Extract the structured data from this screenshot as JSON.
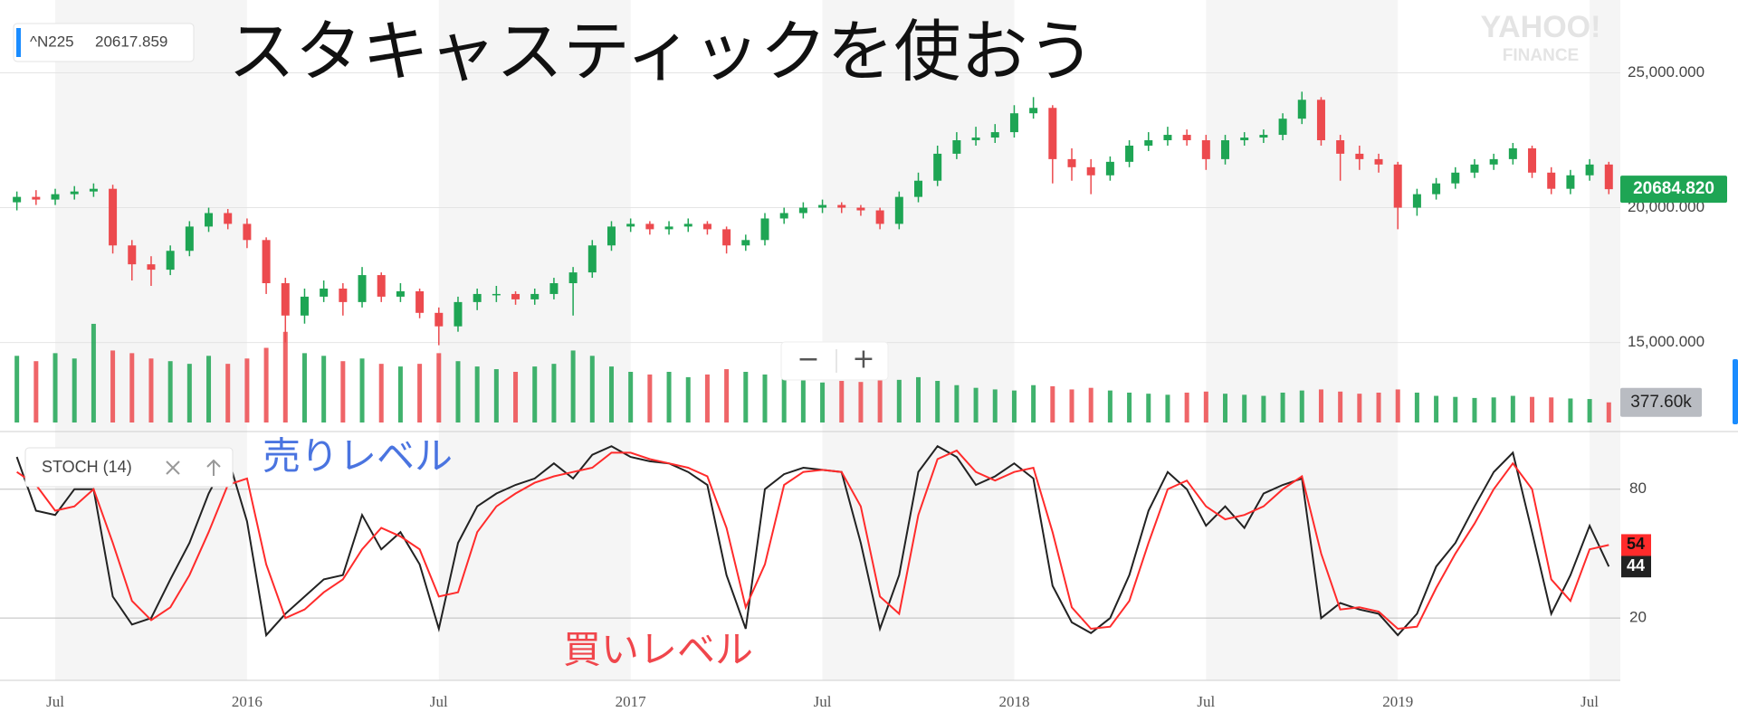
{
  "header": {
    "symbol": "^N225",
    "quote": "20617.859"
  },
  "headline": "スタキャスティックを使おう",
  "logo": {
    "line1": "YAHOO!",
    "line2": "FINANCE"
  },
  "zoom": {
    "out": "−",
    "in": "+"
  },
  "chart_data": [
    {
      "type": "candlestick",
      "x": [
        2015.4,
        2015.45,
        2015.5,
        2015.55,
        2015.6,
        2015.65,
        2015.7,
        2015.75,
        2015.8,
        2015.85,
        2015.9,
        2015.95,
        2016,
        2016.05,
        2016.1,
        2016.15,
        2016.2,
        2016.25,
        2016.3,
        2016.35,
        2016.4,
        2016.45,
        2016.5,
        2016.55,
        2016.6,
        2016.65,
        2016.7,
        2016.75,
        2016.8,
        2016.85,
        2016.9,
        2016.95,
        2017,
        2017.05,
        2017.1,
        2017.15,
        2017.2,
        2017.25,
        2017.3,
        2017.35,
        2017.4,
        2017.45,
        2017.5,
        2017.55,
        2017.6,
        2017.65,
        2017.7,
        2017.75,
        2017.8,
        2017.85,
        2017.9,
        2017.95,
        2018,
        2018.05,
        2018.1,
        2018.15,
        2018.2,
        2018.25,
        2018.3,
        2018.35,
        2018.4,
        2018.45,
        2018.5,
        2018.55,
        2018.6,
        2018.65,
        2018.7,
        2018.75,
        2018.8,
        2018.85,
        2018.9,
        2018.95,
        2019,
        2019.05,
        2019.1,
        2019.15,
        2019.2,
        2019.25,
        2019.3,
        2019.35,
        2019.4,
        2019.45,
        2019.5,
        2019.55
      ],
      "open": [
        20200,
        20400,
        20300,
        20500,
        20600,
        20700,
        18600,
        17900,
        17700,
        18400,
        19300,
        19800,
        19400,
        18800,
        17200,
        16000,
        16700,
        17000,
        16500,
        17500,
        16700,
        16900,
        16100,
        15600,
        16500,
        16800,
        16800,
        16600,
        16800,
        17200,
        17600,
        18600,
        19300,
        19400,
        19200,
        19300,
        19400,
        19200,
        18600,
        18800,
        19600,
        19800,
        20000,
        20100,
        20000,
        19900,
        19400,
        20400,
        21000,
        22000,
        22500,
        22600,
        22800,
        23500,
        23700,
        21800,
        21500,
        21200,
        21700,
        22300,
        22500,
        22700,
        22500,
        21800,
        22500,
        22600,
        22700,
        23300,
        24000,
        22500,
        22000,
        21800,
        21600,
        20000,
        20500,
        20900,
        21300,
        21600,
        21800,
        22200,
        21300,
        20700,
        21200,
        21600
      ],
      "high": [
        20600,
        20650,
        20700,
        20800,
        20900,
        20850,
        18800,
        18200,
        18600,
        19500,
        20000,
        19950,
        19600,
        18900,
        17400,
        17000,
        17300,
        17200,
        17800,
        17600,
        17200,
        17000,
        16300,
        16700,
        17000,
        17100,
        16900,
        17000,
        17400,
        17800,
        18800,
        19500,
        19600,
        19500,
        19500,
        19600,
        19500,
        19300,
        19000,
        19800,
        20000,
        20200,
        20300,
        20200,
        20100,
        20000,
        20600,
        21300,
        22300,
        22800,
        23000,
        23100,
        23800,
        24100,
        23800,
        22200,
        21800,
        21900,
        22500,
        22800,
        23000,
        22900,
        22700,
        22700,
        22800,
        22900,
        23500,
        24300,
        24100,
        22700,
        22300,
        22000,
        21700,
        20700,
        21100,
        21500,
        21800,
        22000,
        22400,
        22300,
        21500,
        21400,
        21800,
        21700
      ],
      "low": [
        19900,
        20100,
        20100,
        20300,
        20400,
        18300,
        17300,
        17100,
        17500,
        18200,
        19100,
        19200,
        18500,
        16800,
        15000,
        15700,
        16500,
        16000,
        16300,
        16500,
        16500,
        15900,
        14900,
        15400,
        16200,
        16500,
        16400,
        16400,
        16600,
        16000,
        17400,
        18400,
        19100,
        19000,
        19000,
        19100,
        19000,
        18300,
        18400,
        18600,
        19400,
        19600,
        19800,
        19800,
        19700,
        19200,
        19200,
        20200,
        20800,
        21800,
        22300,
        22400,
        22600,
        23300,
        20900,
        21000,
        20500,
        21000,
        21500,
        22100,
        22300,
        22300,
        21400,
        21600,
        22300,
        22400,
        22500,
        23100,
        22300,
        21000,
        21400,
        21300,
        19200,
        19700,
        20300,
        20700,
        21100,
        21400,
        21600,
        21100,
        20500,
        20500,
        21000,
        20500
      ],
      "close": [
        20400,
        20300,
        20500,
        20600,
        20700,
        18600,
        17900,
        17700,
        18400,
        19300,
        19800,
        19400,
        18800,
        17200,
        16000,
        16700,
        17000,
        16500,
        17500,
        16700,
        16900,
        16100,
        15600,
        16500,
        16800,
        16800,
        16600,
        16800,
        17200,
        17600,
        18600,
        19300,
        19400,
        19200,
        19300,
        19400,
        19200,
        18600,
        18800,
        19600,
        19800,
        20000,
        20100,
        20000,
        19900,
        19400,
        20400,
        21000,
        22000,
        22500,
        22600,
        22800,
        23500,
        23700,
        21800,
        21500,
        21200,
        21700,
        22300,
        22500,
        22700,
        22500,
        21800,
        22500,
        22600,
        22700,
        23300,
        24000,
        22500,
        22000,
        21800,
        21600,
        20000,
        20500,
        20900,
        21300,
        21600,
        21800,
        22200,
        21300,
        20700,
        21200,
        21600,
        20684.82
      ],
      "up_color": "#1ea554",
      "down_color": "#ec4a4e",
      "xlim": [
        2015.356,
        2019.58
      ],
      "xticks": [
        {
          "value": 2015.5,
          "label": "Jul"
        },
        2016,
        {
          "value": 2016.5,
          "label": "Jul"
        },
        2017,
        {
          "value": 2017.5,
          "label": "Jul"
        },
        2018,
        {
          "value": 2018.5,
          "label": "Jul"
        },
        2019,
        {
          "value": 2019.5,
          "label": "Jul"
        }
      ],
      "ylim": [
        11800,
        27700
      ],
      "yticks": [
        {
          "value": 15000,
          "label": "15,000.000"
        },
        {
          "value": 20000,
          "label": "20,000.000"
        },
        {
          "value": 25000,
          "label": "25,000.000"
        }
      ],
      "grid": true,
      "current": {
        "value": 20684.82,
        "label": "20684.820"
      }
    },
    {
      "type": "bar",
      "values": [
        1250000,
        1150000,
        1300000,
        1200000,
        1850000,
        1350000,
        1300000,
        1200000,
        1150000,
        1100000,
        1250000,
        1100000,
        1200000,
        1400000,
        1700000,
        1300000,
        1250000,
        1150000,
        1200000,
        1100000,
        1050000,
        1100000,
        1300000,
        1150000,
        1050000,
        1000000,
        950000,
        1050000,
        1100000,
        1350000,
        1250000,
        1050000,
        950000,
        900000,
        950000,
        850000,
        900000,
        1000000,
        950000,
        900000,
        850000,
        800000,
        750000,
        780000,
        760000,
        820000,
        800000,
        850000,
        780000,
        700000,
        650000,
        620000,
        600000,
        700000,
        680000,
        620000,
        650000,
        600000,
        560000,
        540000,
        520000,
        560000,
        580000,
        540000,
        520000,
        500000,
        560000,
        600000,
        620000,
        580000,
        540000,
        560000,
        620000,
        560000,
        500000,
        480000,
        460000,
        470000,
        500000,
        480000,
        470000,
        450000,
        440000,
        377600
      ],
      "ylim": [
        0,
        1900000
      ],
      "current": {
        "value": 377600,
        "label": "377.60k"
      }
    },
    {
      "type": "line",
      "legend": "STOCH (14)",
      "series": [
        {
          "color": "#222222",
          "values": [
            95,
            70,
            68,
            80,
            80,
            30,
            17,
            20,
            38,
            55,
            78,
            95,
            65,
            12,
            22,
            30,
            38,
            40,
            68,
            52,
            60,
            45,
            15,
            55,
            72,
            78,
            82,
            85,
            92,
            85,
            96,
            100,
            95,
            93,
            92,
            88,
            82,
            40,
            15,
            80,
            87,
            90,
            89,
            88,
            55,
            15,
            40,
            88,
            100,
            95,
            82,
            86,
            92,
            85,
            35,
            18,
            13,
            20,
            40,
            70,
            88,
            80,
            63,
            72,
            62,
            78,
            82,
            85,
            20,
            27,
            24,
            22,
            12,
            22,
            44,
            55,
            72,
            88,
            97,
            60,
            22,
            40,
            63,
            44
          ]
        },
        {
          "color": "#ff2b2b",
          "values": [
            88,
            82,
            70,
            72,
            80,
            55,
            28,
            19,
            25,
            40,
            60,
            82,
            85,
            45,
            20,
            24,
            32,
            38,
            52,
            62,
            58,
            52,
            30,
            32,
            60,
            72,
            78,
            83,
            86,
            88,
            90,
            97,
            97,
            94,
            92,
            90,
            86,
            62,
            25,
            45,
            82,
            88,
            89,
            88,
            72,
            30,
            22,
            68,
            94,
            98,
            88,
            84,
            88,
            90,
            60,
            25,
            15,
            16,
            28,
            55,
            80,
            84,
            72,
            66,
            68,
            72,
            80,
            86,
            50,
            24,
            25,
            23,
            15,
            16,
            34,
            50,
            64,
            80,
            92,
            80,
            38,
            28,
            52,
            54
          ]
        }
      ],
      "ylim": [
        -9,
        106
      ],
      "yticks": [
        20,
        80
      ],
      "grid": true,
      "annotations": [
        {
          "text": "売りレベル",
          "color": "#4a74e0"
        },
        {
          "text": "買いレベル",
          "color": "#f0464c"
        }
      ]
    }
  ]
}
